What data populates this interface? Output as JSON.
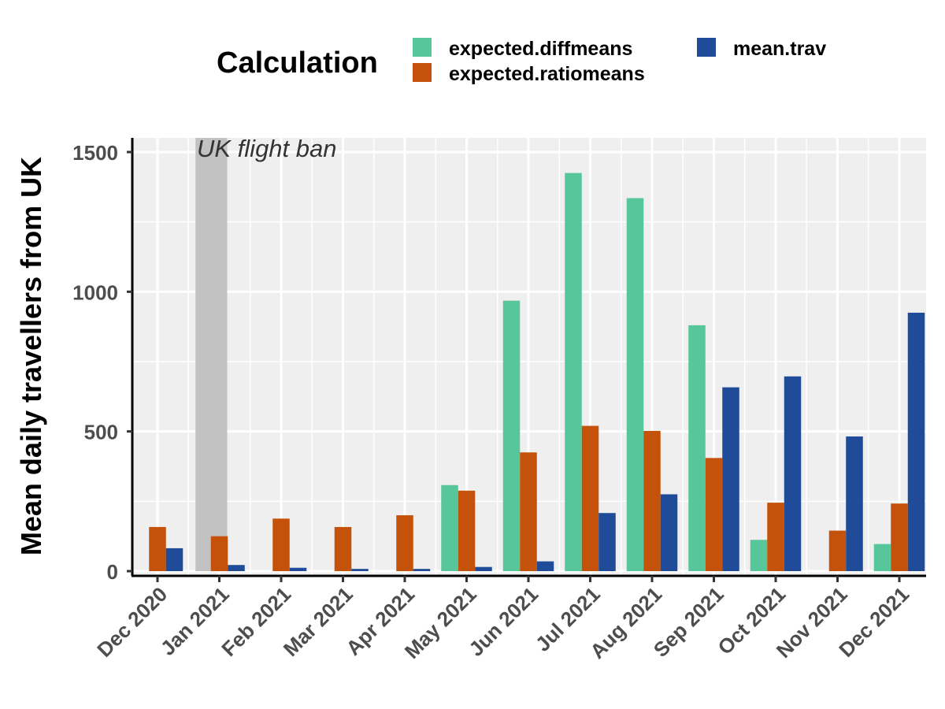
{
  "chart_data": {
    "type": "bar",
    "title": "",
    "xlabel": "",
    "ylabel": "Mean daily travellers from UK",
    "ylim": [
      0,
      1550
    ],
    "yticks": [
      0,
      500,
      1000,
      1500
    ],
    "grid": true,
    "legend": {
      "title": "Calculation",
      "position": "top"
    },
    "categories": [
      "Dec 2020",
      "Jan 2021",
      "Feb 2021",
      "Mar 2021",
      "Apr 2021",
      "May 2021",
      "Jun 2021",
      "Jul 2021",
      "Aug 2021",
      "Sep 2021",
      "Oct 2021",
      "Nov 2021",
      "Dec 2021"
    ],
    "series": [
      {
        "name": "expected.diffmeans",
        "color": "#57c69b",
        "values": [
          0,
          0,
          0,
          0,
          0,
          308,
          968,
          1425,
          1335,
          880,
          112,
          0,
          97
        ]
      },
      {
        "name": "expected.ratiomeans",
        "color": "#c4520a",
        "values": [
          158,
          125,
          188,
          158,
          200,
          288,
          425,
          520,
          502,
          405,
          245,
          145,
          242
        ]
      },
      {
        "name": "mean.trav",
        "color": "#1f4b99",
        "values": [
          82,
          22,
          12,
          8,
          8,
          15,
          35,
          208,
          275,
          658,
          697,
          482,
          925
        ]
      }
    ],
    "annotations": [
      {
        "text": "UK flight ban",
        "x_start": "Dec 2020",
        "x_end": "Jan 2021",
        "shade_color": "#c2c2c2"
      }
    ]
  }
}
